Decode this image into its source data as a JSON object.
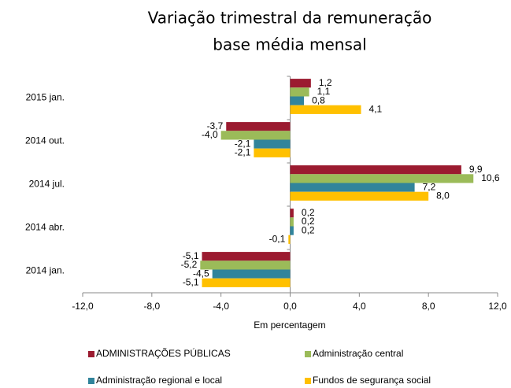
{
  "chart_data": {
    "type": "hbar",
    "title": [
      "Variação trimestral da remuneração",
      "base média mensal"
    ],
    "xlabel": "Em percentagem",
    "categories": [
      "2015 jan.",
      "2014 out.",
      "2014  jul.",
      "2014 abr.",
      "2014 jan."
    ],
    "series": [
      {
        "name": "ADMINISTRAÇÕES PÚBLICAS",
        "color": "#9b1b30",
        "values": [
          1.2,
          -3.7,
          9.9,
          0.2,
          -5.1
        ],
        "value_labels": [
          "1,2",
          "-3,7",
          "9,9",
          "0,2",
          "-5,1"
        ]
      },
      {
        "name": "Administração central",
        "color": "#9bbb59",
        "values": [
          1.1,
          -4.0,
          10.6,
          0.2,
          -5.2
        ],
        "value_labels": [
          "1,1",
          "-4,0",
          "10,6",
          "0,2",
          "-5,2"
        ]
      },
      {
        "name": "Administração regional e local",
        "color": "#31849b",
        "values": [
          0.8,
          -2.1,
          7.2,
          0.2,
          -4.5
        ],
        "value_labels": [
          "0,8",
          "-2,1",
          "7,2",
          "0,2",
          "-4,5"
        ]
      },
      {
        "name": "Fundos de segurança social",
        "color": "#ffc000",
        "values": [
          4.1,
          -2.1,
          8.0,
          -0.1,
          -5.1
        ],
        "value_labels": [
          "4,1",
          "-2,1",
          "8,0",
          "-0,1",
          "-5,1"
        ]
      }
    ],
    "xlim": [
      -12,
      12
    ],
    "xticks": [
      {
        "value": -12,
        "label": "-12,0"
      },
      {
        "value": -8,
        "label": "-8,0"
      },
      {
        "value": -4,
        "label": "-4,0"
      },
      {
        "value": 0,
        "label": "0,0"
      },
      {
        "value": 4,
        "label": "4,0"
      },
      {
        "value": 8,
        "label": "8,0"
      },
      {
        "value": 12,
        "label": "12,0"
      }
    ],
    "grid": false,
    "legend": "bottom"
  }
}
